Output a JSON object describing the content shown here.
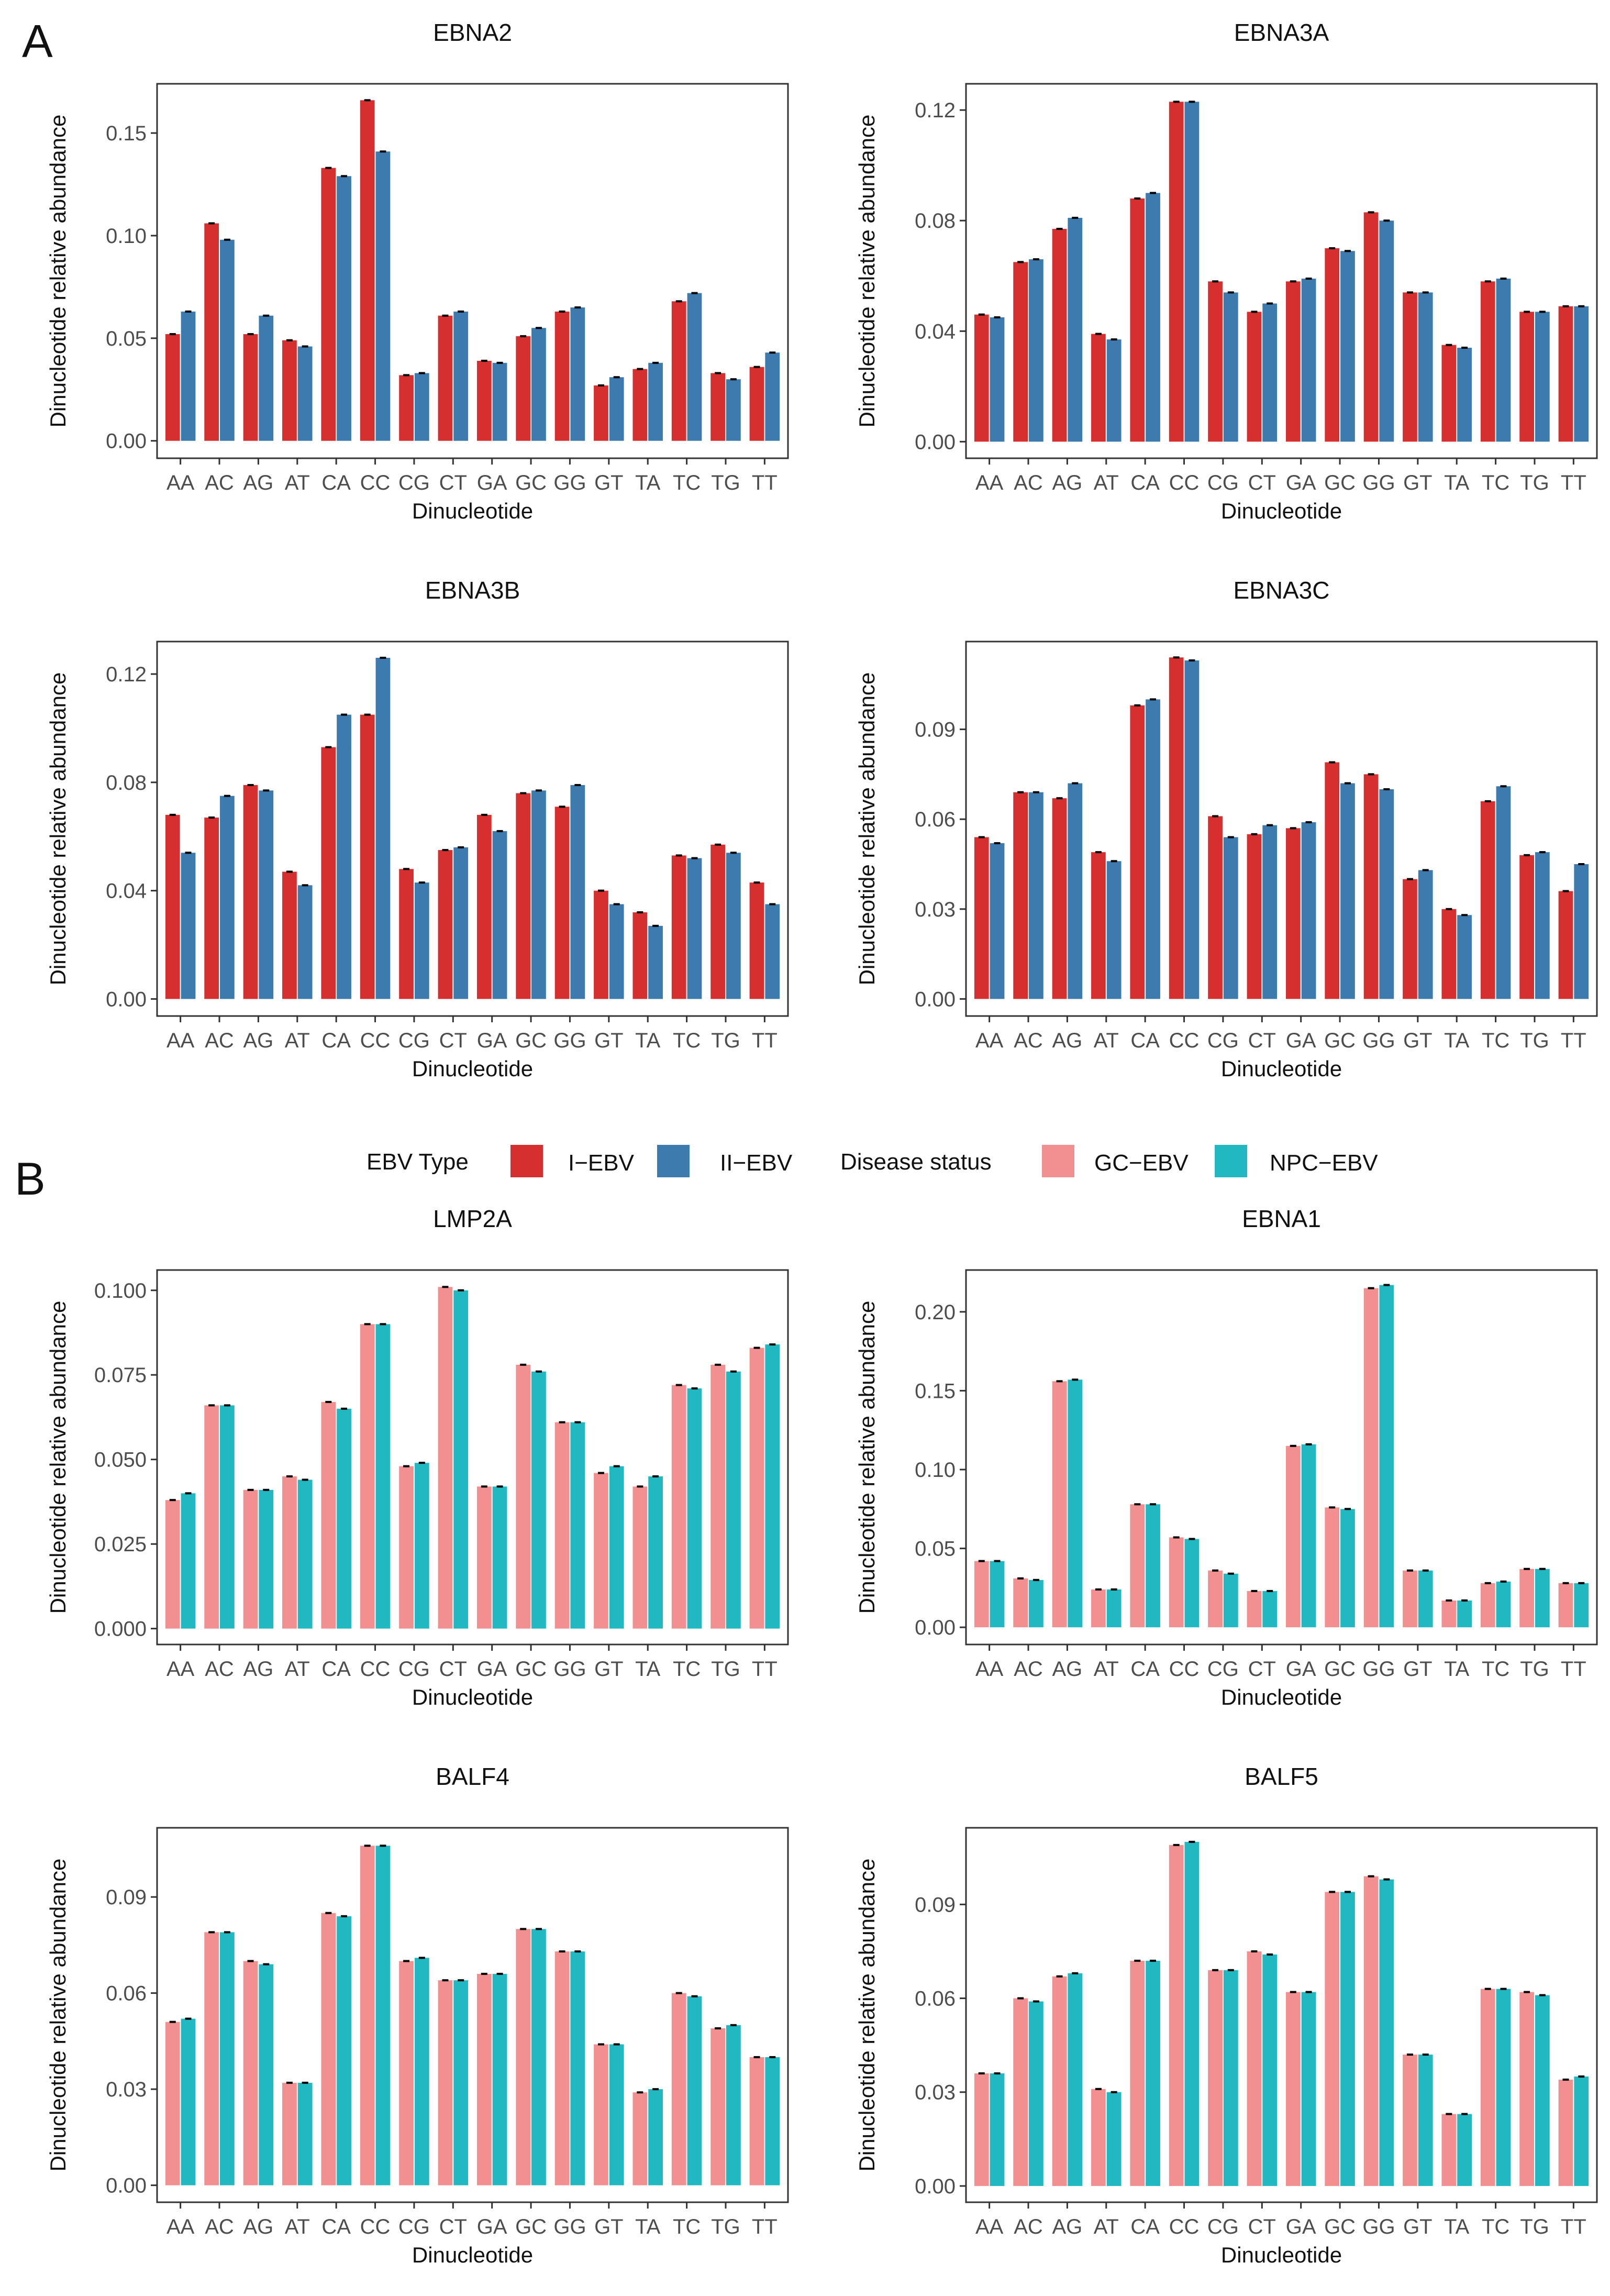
{
  "panel_labels": {
    "a": "A",
    "b": "B"
  },
  "legend": {
    "ebv_type_title": "EBV Type",
    "ebv_type_items": [
      {
        "label": "I−EBV",
        "color": "#D62F2F"
      },
      {
        "label": "II−EBV",
        "color": "#3D7AAE"
      }
    ],
    "disease_title": "Disease status",
    "disease_items": [
      {
        "label": "GC−EBV",
        "color": "#F29091"
      },
      {
        "label": "NPC−EBV",
        "color": "#22B8C2"
      }
    ]
  },
  "chart_data": [
    {
      "type": "bar",
      "title": "EBNA2",
      "xlabel": "Dinucleotide",
      "ylabel": "Dinucleotide relative abundance",
      "categories": [
        "AA",
        "AC",
        "AG",
        "AT",
        "CA",
        "CC",
        "CG",
        "CT",
        "GA",
        "GC",
        "GG",
        "GT",
        "TA",
        "TC",
        "TG",
        "TT"
      ],
      "ylim": [
        -0.0085,
        0.174
      ],
      "yticks": [
        0.0,
        0.05,
        0.1,
        0.15
      ],
      "ytick_labels": [
        "0.00",
        "0.05",
        "0.10",
        "0.15"
      ],
      "series": [
        {
          "name": "I-EBV",
          "color": "#D62F2F",
          "values": [
            0.052,
            0.106,
            0.052,
            0.049,
            0.133,
            0.166,
            0.032,
            0.061,
            0.039,
            0.051,
            0.063,
            0.027,
            0.035,
            0.068,
            0.033,
            0.036
          ]
        },
        {
          "name": "II-EBV",
          "color": "#3D7AAE",
          "values": [
            0.063,
            0.098,
            0.061,
            0.046,
            0.129,
            0.141,
            0.033,
            0.063,
            0.038,
            0.055,
            0.065,
            0.031,
            0.038,
            0.072,
            0.03,
            0.043
          ]
        }
      ],
      "grid": false,
      "legend": "bottom-shared"
    },
    {
      "type": "bar",
      "title": "EBNA3A",
      "xlabel": "Dinucleotide",
      "ylabel": "Dinucleotide relative abundance",
      "categories": [
        "AA",
        "AC",
        "AG",
        "AT",
        "CA",
        "CC",
        "CG",
        "CT",
        "GA",
        "GC",
        "GG",
        "GT",
        "TA",
        "TC",
        "TG",
        "TT"
      ],
      "ylim": [
        -0.006,
        0.1295
      ],
      "yticks": [
        0.0,
        0.04,
        0.08,
        0.12
      ],
      "ytick_labels": [
        "0.00",
        "0.04",
        "0.08",
        "0.12"
      ],
      "series": [
        {
          "name": "I-EBV",
          "color": "#D62F2F",
          "values": [
            0.046,
            0.065,
            0.077,
            0.039,
            0.088,
            0.123,
            0.058,
            0.047,
            0.058,
            0.07,
            0.083,
            0.054,
            0.035,
            0.058,
            0.047,
            0.049
          ]
        },
        {
          "name": "II-EBV",
          "color": "#3D7AAE",
          "values": [
            0.045,
            0.066,
            0.081,
            0.037,
            0.09,
            0.123,
            0.054,
            0.05,
            0.059,
            0.069,
            0.08,
            0.054,
            0.034,
            0.059,
            0.047,
            0.049
          ]
        }
      ],
      "grid": false,
      "legend": "bottom-shared"
    },
    {
      "type": "bar",
      "title": "EBNA3B",
      "xlabel": "Dinucleotide",
      "ylabel": "Dinucleotide relative abundance",
      "categories": [
        "AA",
        "AC",
        "AG",
        "AT",
        "CA",
        "CC",
        "CG",
        "CT",
        "GA",
        "GC",
        "GG",
        "GT",
        "TA",
        "TC",
        "TG",
        "TT"
      ],
      "ylim": [
        -0.0063,
        0.132
      ],
      "yticks": [
        0.0,
        0.04,
        0.08,
        0.12
      ],
      "ytick_labels": [
        "0.00",
        "0.04",
        "0.08",
        "0.12"
      ],
      "series": [
        {
          "name": "I-EBV",
          "color": "#D62F2F",
          "values": [
            0.068,
            0.067,
            0.079,
            0.047,
            0.093,
            0.105,
            0.048,
            0.055,
            0.068,
            0.076,
            0.071,
            0.04,
            0.032,
            0.053,
            0.057,
            0.043
          ]
        },
        {
          "name": "II-EBV",
          "color": "#3D7AAE",
          "values": [
            0.054,
            0.075,
            0.077,
            0.042,
            0.105,
            0.126,
            0.043,
            0.056,
            0.062,
            0.077,
            0.079,
            0.035,
            0.027,
            0.052,
            0.054,
            0.035
          ]
        }
      ],
      "grid": false,
      "legend": "bottom-shared"
    },
    {
      "type": "bar",
      "title": "EBNA3C",
      "xlabel": "Dinucleotide",
      "ylabel": "Dinucleotide relative abundance",
      "categories": [
        "AA",
        "AC",
        "AG",
        "AT",
        "CA",
        "CC",
        "CG",
        "CT",
        "GA",
        "GC",
        "GG",
        "GT",
        "TA",
        "TC",
        "TG",
        "TT"
      ],
      "ylim": [
        -0.0057,
        0.1193
      ],
      "yticks": [
        0.0,
        0.03,
        0.06,
        0.09
      ],
      "ytick_labels": [
        "0.00",
        "0.03",
        "0.06",
        "0.09"
      ],
      "series": [
        {
          "name": "I-EBV",
          "color": "#D62F2F",
          "values": [
            0.054,
            0.069,
            0.067,
            0.049,
            0.098,
            0.114,
            0.061,
            0.055,
            0.057,
            0.079,
            0.075,
            0.04,
            0.03,
            0.066,
            0.048,
            0.036
          ]
        },
        {
          "name": "II-EBV",
          "color": "#3D7AAE",
          "values": [
            0.052,
            0.069,
            0.072,
            0.046,
            0.1,
            0.113,
            0.054,
            0.058,
            0.059,
            0.072,
            0.07,
            0.043,
            0.028,
            0.071,
            0.049,
            0.045
          ]
        }
      ],
      "grid": false,
      "legend": "bottom-shared"
    },
    {
      "type": "bar",
      "title": "LMP2A",
      "xlabel": "Dinucleotide",
      "ylabel": "Dinucleotide relative abundance",
      "categories": [
        "AA",
        "AC",
        "AG",
        "AT",
        "CA",
        "CC",
        "CG",
        "CT",
        "GA",
        "GC",
        "GG",
        "GT",
        "TA",
        "TC",
        "TG",
        "TT"
      ],
      "ylim": [
        -0.0047,
        0.106
      ],
      "yticks": [
        0.0,
        0.025,
        0.05,
        0.075,
        0.1
      ],
      "ytick_labels": [
        "0.000",
        "0.025",
        "0.050",
        "0.075",
        "0.100"
      ],
      "series": [
        {
          "name": "GC-EBV",
          "color": "#F29091",
          "values": [
            0.038,
            0.066,
            0.041,
            0.045,
            0.067,
            0.09,
            0.048,
            0.101,
            0.042,
            0.078,
            0.061,
            0.046,
            0.042,
            0.072,
            0.078,
            0.083
          ]
        },
        {
          "name": "NPC-EBV",
          "color": "#22B8C2",
          "values": [
            0.04,
            0.066,
            0.041,
            0.044,
            0.065,
            0.09,
            0.049,
            0.1,
            0.042,
            0.076,
            0.061,
            0.048,
            0.045,
            0.071,
            0.076,
            0.084
          ]
        }
      ],
      "grid": false,
      "legend": "top-shared"
    },
    {
      "type": "bar",
      "title": "EBNA1",
      "xlabel": "Dinucleotide",
      "ylabel": "Dinucleotide relative abundance",
      "categories": [
        "AA",
        "AC",
        "AG",
        "AT",
        "CA",
        "CC",
        "CG",
        "CT",
        "GA",
        "GC",
        "GG",
        "GT",
        "TA",
        "TC",
        "TG",
        "TT"
      ],
      "ylim": [
        -0.0109,
        0.2265
      ],
      "yticks": [
        0.0,
        0.05,
        0.1,
        0.15,
        0.2
      ],
      "ytick_labels": [
        "0.00",
        "0.05",
        "0.10",
        "0.15",
        "0.20"
      ],
      "series": [
        {
          "name": "GC-EBV",
          "color": "#F29091",
          "values": [
            0.042,
            0.031,
            0.156,
            0.024,
            0.078,
            0.057,
            0.036,
            0.023,
            0.115,
            0.076,
            0.215,
            0.036,
            0.017,
            0.028,
            0.037,
            0.028
          ]
        },
        {
          "name": "NPC-EBV",
          "color": "#22B8C2",
          "values": [
            0.042,
            0.03,
            0.157,
            0.024,
            0.078,
            0.056,
            0.034,
            0.023,
            0.116,
            0.075,
            0.217,
            0.036,
            0.017,
            0.029,
            0.037,
            0.028
          ]
        }
      ],
      "grid": false,
      "legend": "top-shared"
    },
    {
      "type": "bar",
      "title": "BALF4",
      "xlabel": "Dinucleotide",
      "ylabel": "Dinucleotide relative abundance",
      "categories": [
        "AA",
        "AC",
        "AG",
        "AT",
        "CA",
        "CC",
        "CG",
        "CT",
        "GA",
        "GC",
        "GG",
        "GT",
        "TA",
        "TC",
        "TG",
        "TT"
      ],
      "ylim": [
        -0.0053,
        0.1116
      ],
      "yticks": [
        0.0,
        0.03,
        0.06,
        0.09
      ],
      "ytick_labels": [
        "0.00",
        "0.03",
        "0.06",
        "0.09"
      ],
      "series": [
        {
          "name": "GC-EBV",
          "color": "#F29091",
          "values": [
            0.051,
            0.079,
            0.07,
            0.032,
            0.085,
            0.106,
            0.07,
            0.064,
            0.066,
            0.08,
            0.073,
            0.044,
            0.029,
            0.06,
            0.049,
            0.04
          ]
        },
        {
          "name": "NPC-EBV",
          "color": "#22B8C2",
          "values": [
            0.052,
            0.079,
            0.069,
            0.032,
            0.084,
            0.106,
            0.071,
            0.064,
            0.066,
            0.08,
            0.073,
            0.044,
            0.03,
            0.059,
            0.05,
            0.04
          ]
        }
      ],
      "grid": false,
      "legend": "top-shared"
    },
    {
      "type": "bar",
      "title": "BALF5",
      "xlabel": "Dinucleotide",
      "ylabel": "Dinucleotide relative abundance",
      "categories": [
        "AA",
        "AC",
        "AG",
        "AT",
        "CA",
        "CC",
        "CG",
        "CT",
        "GA",
        "GC",
        "GG",
        "GT",
        "TA",
        "TC",
        "TG",
        "TT"
      ],
      "ylim": [
        -0.0052,
        0.1145
      ],
      "yticks": [
        0.0,
        0.03,
        0.06,
        0.09
      ],
      "ytick_labels": [
        "0.00",
        "0.03",
        "0.06",
        "0.09"
      ],
      "series": [
        {
          "name": "GC-EBV",
          "color": "#F29091",
          "values": [
            0.036,
            0.06,
            0.067,
            0.031,
            0.072,
            0.109,
            0.069,
            0.075,
            0.062,
            0.094,
            0.099,
            0.042,
            0.023,
            0.063,
            0.062,
            0.034
          ]
        },
        {
          "name": "NPC-EBV",
          "color": "#22B8C2",
          "values": [
            0.036,
            0.059,
            0.068,
            0.03,
            0.072,
            0.11,
            0.069,
            0.074,
            0.062,
            0.094,
            0.098,
            0.042,
            0.023,
            0.063,
            0.061,
            0.035
          ]
        }
      ],
      "grid": false,
      "legend": "top-shared"
    }
  ]
}
